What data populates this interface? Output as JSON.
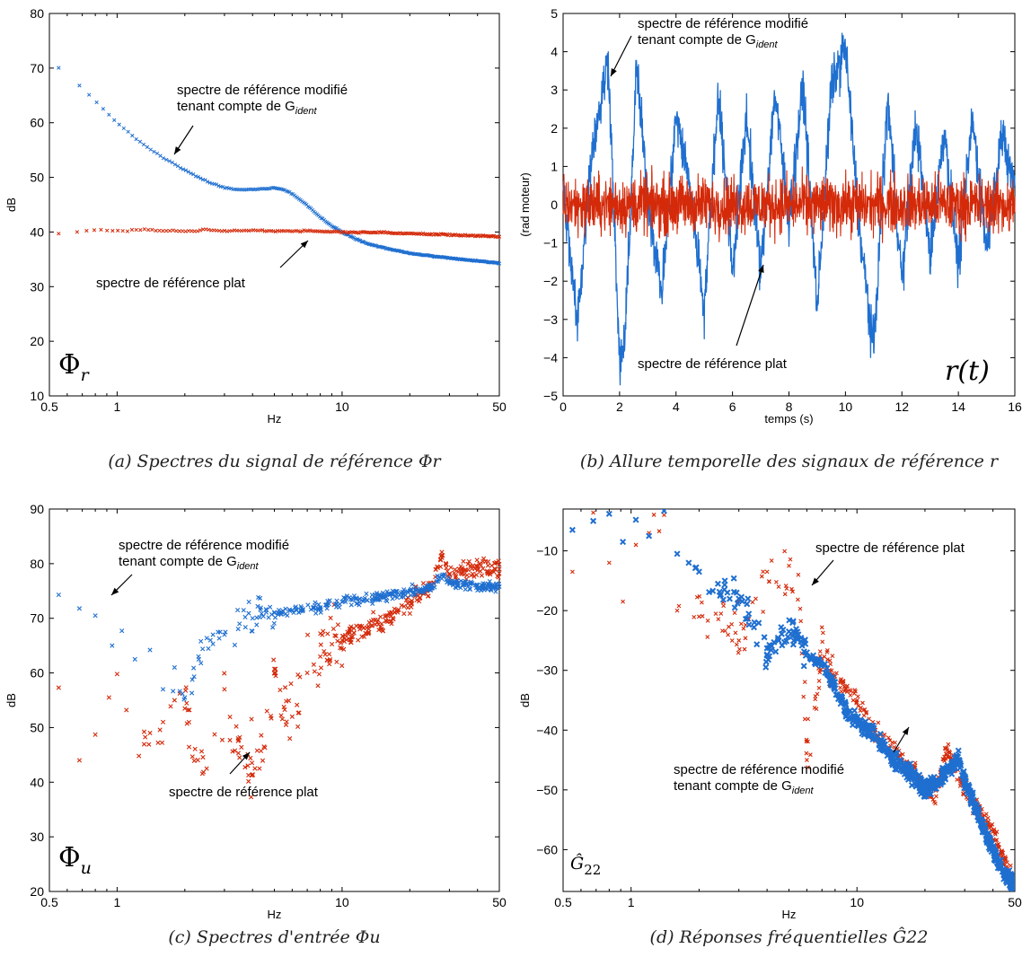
{
  "colors": {
    "blue": "#1f6fd0",
    "red": "#d42a0a",
    "frame": "#000000"
  },
  "charts": [
    {
      "id": "a",
      "type": "scatter",
      "xscale": "log",
      "xlim": [
        0.5,
        50
      ],
      "ylim": [
        10,
        80
      ],
      "xticks": [
        "0.5",
        "1",
        "10",
        "50"
      ],
      "yticks": [
        "10",
        "20",
        "30",
        "40",
        "50",
        "60",
        "70",
        "80"
      ],
      "xlabel": "Hz",
      "ylabel": "dB",
      "symbol": "Φ",
      "symbol_sub": "r",
      "annotation_blue": [
        "spectre de référence modifié",
        "tenant compte de G"
      ],
      "annotation_blue_sub": "ident",
      "annotation_red": "spectre de référence plat",
      "caption": "(a) Spectres du signal de référence Φr"
    },
    {
      "id": "b",
      "type": "line",
      "xlim": [
        0,
        16
      ],
      "ylim": [
        -5,
        5
      ],
      "xticks": [
        "0",
        "2",
        "4",
        "6",
        "8",
        "10",
        "12",
        "14",
        "16"
      ],
      "yticks": [
        "−5",
        "−4",
        "−3",
        "−2",
        "−1",
        "0",
        "1",
        "2",
        "3",
        "4",
        "5"
      ],
      "xlabel": "temps (s)",
      "ylabel": "(rad moteur)",
      "symbol": "r(t)",
      "annotation_blue": [
        "spectre de référence modifié",
        "tenant compte de G"
      ],
      "annotation_blue_sub": "ident",
      "annotation_red": "spectre de référence plat",
      "caption": "(b) Allure temporelle des signaux de référence r"
    },
    {
      "id": "c",
      "type": "scatter",
      "xscale": "log",
      "xlim": [
        0.5,
        50
      ],
      "ylim": [
        20,
        90
      ],
      "xticks": [
        "0.5",
        "1",
        "10",
        "50"
      ],
      "yticks": [
        "20",
        "30",
        "40",
        "50",
        "60",
        "70",
        "80",
        "90"
      ],
      "xlabel": "Hz",
      "ylabel": "dB",
      "symbol": "Φ",
      "symbol_sub": "u",
      "annotation_blue": [
        "spectre de référence modifié",
        "tenant compte de G"
      ],
      "annotation_blue_sub": "ident",
      "annotation_red": "spectre de référence plat",
      "caption": "(c) Spectres d'entrée Φu"
    },
    {
      "id": "d",
      "type": "scatter",
      "xscale": "log",
      "xlim": [
        0.5,
        50
      ],
      "ylim": [
        -67,
        -3
      ],
      "xticks": [
        "0.5",
        "1",
        "10",
        "50"
      ],
      "yticks": [
        "−10",
        "−20",
        "−30",
        "−40",
        "−50",
        "−60"
      ],
      "xlabel": "Hz",
      "ylabel": "dB",
      "symbol": "Ĝ",
      "symbol_sub": "22",
      "annotation_blue": [
        "spectre de référence modifié",
        "tenant compte de G"
      ],
      "annotation_blue_sub": "ident",
      "annotation_red": "spectre de référence plat",
      "caption": "(d) Réponses fréquentielles Ĝ22"
    }
  ],
  "chart_data": [
    {
      "type": "scatter",
      "series": [
        {
          "name": "spectre de référence modifié tenant compte de G_ident",
          "color": "blue",
          "x": [
            0.55,
            0.68,
            0.8,
            0.92,
            1.05,
            1.2,
            1.4,
            1.6,
            1.8,
            2.0,
            2.3,
            2.6,
            3.0,
            3.5,
            4.0,
            4.5,
            5.0,
            5.5,
            6.0,
            7.0,
            8.0,
            9.0,
            10,
            12,
            14,
            17,
            20,
            25,
            30,
            40,
            50
          ],
          "y": [
            70,
            66.8,
            64,
            61.5,
            59.2,
            57.2,
            55.2,
            53.6,
            52.4,
            51.3,
            50,
            49,
            48.1,
            47.7,
            47.8,
            47.9,
            48.1,
            47.8,
            47,
            44.9,
            42.7,
            41.1,
            40,
            38.4,
            37.5,
            36.7,
            36.1,
            35.6,
            35.2,
            34.7,
            34.3
          ]
        },
        {
          "name": "spectre de référence plat",
          "color": "red",
          "x": [
            0.55,
            0.68,
            0.8,
            0.92,
            1.05,
            1.2,
            1.4,
            1.6,
            1.8,
            2.0,
            2.5,
            3.0,
            4.0,
            5.0,
            6.0,
            8.0,
            10,
            15,
            20,
            30,
            40,
            50
          ],
          "y": [
            39.8,
            40.1,
            40.4,
            40.2,
            40.1,
            40.3,
            40.5,
            40.2,
            40.3,
            40.1,
            40.4,
            40.2,
            40.3,
            40.2,
            40.2,
            40.1,
            40,
            39.9,
            39.7,
            39.5,
            39.3,
            39.1
          ]
        }
      ]
    },
    {
      "type": "line",
      "x_range": [
        0,
        16
      ],
      "series": [
        {
          "name": "spectre de référence modifié tenant compte de G_ident",
          "color": "blue",
          "x": [
            0,
            0.5,
            1.0,
            1.4,
            1.6,
            2.0,
            2.2,
            2.6,
            3.0,
            3.5,
            4.0,
            4.5,
            5.0,
            5.5,
            6.0,
            6.5,
            7.0,
            7.5,
            8.0,
            8.5,
            9.0,
            9.5,
            10.0,
            10.5,
            11.0,
            11.5,
            12.0,
            12.5,
            13.0,
            13.5,
            14.0,
            14.5,
            15.0,
            15.5,
            16.0
          ],
          "y": [
            0.5,
            -3.5,
            1.5,
            3.3,
            4.3,
            -4.7,
            -3.8,
            4.0,
            0.2,
            -2.6,
            2.6,
            0.5,
            -3.0,
            3.3,
            -1.9,
            2.6,
            -2.0,
            3.3,
            -0.5,
            3.5,
            -3.0,
            3.4,
            4.6,
            -0.8,
            -4.2,
            3.1,
            -2.2,
            2.4,
            -1.5,
            2.2,
            -1.8,
            2.5,
            -1.3,
            2.0,
            0.5
          ]
        },
        {
          "name": "spectre de référence plat",
          "color": "red",
          "x": [
            0,
            16
          ],
          "y": [
            -1.6,
            1.7
          ]
        }
      ]
    },
    {
      "type": "scatter",
      "series": [
        {
          "name": "spectre de référence modifié tenant compte de G_ident",
          "color": "blue",
          "x": [
            0.55,
            0.68,
            0.8,
            0.95,
            1.05,
            1.2,
            1.4,
            1.6,
            1.8,
            2.0,
            2.3,
            2.6,
            3.0,
            3.5,
            4.0,
            5.0,
            6.0,
            8.0,
            10,
            12,
            15,
            20,
            25,
            28,
            30,
            40,
            50
          ],
          "y": [
            74.3,
            71.8,
            70.5,
            65.0,
            67.7,
            62.5,
            64.2,
            57,
            61,
            55.5,
            63,
            66,
            67,
            69,
            70,
            71,
            71.5,
            72,
            73,
            73.5,
            74,
            75,
            75.5,
            78,
            76.5,
            76,
            75.8
          ]
        },
        {
          "name": "spectre de référence plat",
          "color": "red",
          "x": [
            0.55,
            0.68,
            0.8,
            0.92,
            1.0,
            1.1,
            1.25,
            1.4,
            1.6,
            1.8,
            2.0,
            2.5,
            3.0,
            3.5,
            4.0,
            4.5,
            5.0,
            6.0,
            7.0,
            8.0,
            10,
            12,
            15,
            20,
            25,
            28,
            30,
            40,
            50
          ],
          "y": [
            57.3,
            44,
            48.7,
            55.5,
            59.8,
            53.2,
            44.8,
            49,
            51,
            55,
            53.5,
            42.5,
            57,
            44.5,
            41.3,
            46.5,
            60,
            52,
            60,
            63,
            66,
            68,
            69,
            73,
            76,
            81.5,
            78,
            79.5,
            79
          ]
        }
      ]
    },
    {
      "type": "scatter",
      "series": [
        {
          "name": "spectre de référence modifié tenant compte de G_ident",
          "color": "blue",
          "x": [
            0.55,
            0.68,
            0.8,
            0.92,
            1.05,
            1.2,
            1.4,
            1.6,
            1.8,
            2.0,
            2.3,
            2.6,
            3.0,
            3.5,
            4.0,
            4.5,
            5.0,
            5.5,
            6.0,
            7.0,
            8.0,
            9.0,
            10,
            12,
            14,
            16,
            18,
            20,
            22,
            25,
            28,
            30,
            35,
            40,
            45,
            50
          ],
          "y": [
            -6.5,
            -5,
            -3.8,
            -8.5,
            -4.8,
            -7.5,
            -3.3,
            -10.5,
            -12,
            -13.5,
            -16.7,
            -15,
            -18,
            -22.8,
            -27.5,
            -25,
            -23.5,
            -24,
            -27,
            -29,
            -33,
            -37,
            -38.5,
            -41,
            -44,
            -46,
            -48,
            -50,
            -49,
            -47,
            -44.5,
            -48.5,
            -55,
            -60,
            -64,
            -66
          ]
        },
        {
          "name": "spectre de référence plat",
          "color": "red",
          "x": [
            0.55,
            0.68,
            0.8,
            0.92,
            1.05,
            1.2,
            1.4,
            1.6,
            2.0,
            2.5,
            3.0,
            4.0,
            4.5,
            5.0,
            5.5,
            6.0,
            7.0,
            8.0,
            10,
            12,
            15,
            20,
            22,
            25,
            30,
            40,
            50
          ],
          "y": [
            -13.5,
            -3.6,
            -12,
            -18.5,
            -9,
            -7,
            -4,
            -20,
            -21,
            -20.5,
            -25,
            -13.5,
            -16,
            -12.5,
            -14,
            -45,
            -28,
            -31,
            -35,
            -40,
            -44,
            -49,
            -52,
            -43,
            -50,
            -57,
            -66
          ]
        }
      ]
    }
  ]
}
